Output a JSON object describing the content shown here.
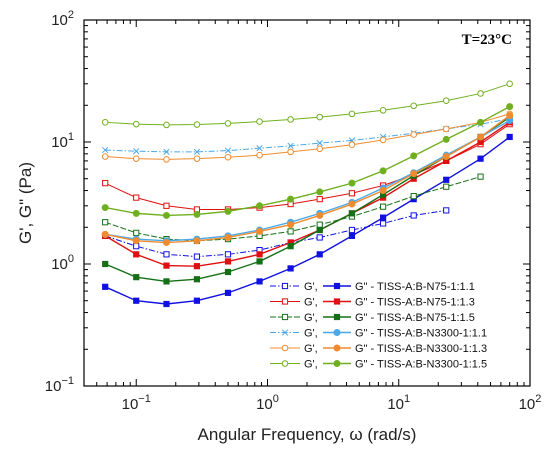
{
  "chart_data": {
    "type": "line",
    "xlabel": "Angular Frequency, ω (rad/s)",
    "ylabel": "G', G\" (Pa)",
    "annotation": "T=23°C",
    "xscale": "log",
    "yscale": "log",
    "xlim": [
      0.04,
      100
    ],
    "ylim": [
      0.1,
      100
    ],
    "x_ticks": [
      {
        "value": 0.1,
        "base": "10",
        "exp": "−1"
      },
      {
        "value": 1,
        "base": "10",
        "exp": "0"
      },
      {
        "value": 10,
        "base": "10",
        "exp": "1"
      },
      {
        "value": 100,
        "base": "10",
        "exp": "2"
      }
    ],
    "y_ticks": [
      {
        "value": 0.1,
        "base": "10",
        "exp": "−1"
      },
      {
        "value": 1,
        "base": "10",
        "exp": "0"
      },
      {
        "value": 10,
        "base": "10",
        "exp": "1"
      },
      {
        "value": 100,
        "base": "10",
        "exp": "2"
      }
    ],
    "grid": false,
    "legend_position": "bottom-right",
    "series": [
      {
        "name": "TISS-A:B-N75-1:1.1",
        "color": "#1010e0",
        "gp_label": "G',",
        "gpp_label": "G\" - TISS-A:B-N75-1:1.1",
        "gp_x": [
          0.058,
          0.1,
          0.17,
          0.29,
          0.5,
          0.87,
          1.5,
          2.5,
          4.4,
          7.6,
          13,
          23
        ],
        "gp_y": [
          1.7,
          1.4,
          1.2,
          1.15,
          1.2,
          1.3,
          1.5,
          1.65,
          1.9,
          2.15,
          2.5,
          2.75
        ],
        "gpp_x": [
          0.058,
          0.1,
          0.17,
          0.29,
          0.5,
          0.87,
          1.5,
          2.5,
          4.4,
          7.6,
          13,
          23,
          42,
          70
        ],
        "gpp_y": [
          0.65,
          0.5,
          0.47,
          0.5,
          0.58,
          0.72,
          0.92,
          1.2,
          1.7,
          2.4,
          3.4,
          4.9,
          7.3,
          11
        ]
      },
      {
        "name": "TISS-A:B-N75-1:1.3",
        "color": "#e01010",
        "gp_label": "G',",
        "gpp_label": "G\" - TISS-A:B-N75-1:1.3",
        "gp_x": [
          0.058,
          0.1,
          0.17,
          0.29,
          0.5,
          0.87,
          1.5,
          2.5,
          4.4,
          7.6,
          13,
          23,
          42,
          70
        ],
        "gp_y": [
          4.6,
          3.5,
          3.0,
          2.8,
          2.8,
          2.9,
          3.1,
          3.4,
          3.8,
          4.4,
          5.4,
          7.0,
          9.6,
          14
        ],
        "gpp_x": [
          0.058,
          0.1,
          0.17,
          0.29,
          0.5,
          0.87,
          1.5,
          2.5,
          4.4,
          7.6,
          13,
          23,
          42,
          70
        ],
        "gpp_y": [
          1.7,
          1.2,
          0.97,
          0.96,
          1.05,
          1.2,
          1.5,
          1.9,
          2.6,
          3.5,
          5.0,
          7.0,
          10,
          14.5
        ]
      },
      {
        "name": "TISS-A:B-N75-1:1.5",
        "color": "#157015",
        "gp_label": "G',",
        "gpp_label": "G\" - TISS-A:B-N75-1:1.5",
        "gp_x": [
          0.058,
          0.1,
          0.17,
          0.29,
          0.5,
          0.87,
          1.5,
          2.5,
          4.4,
          7.6,
          13,
          23,
          42
        ],
        "gp_y": [
          2.2,
          1.8,
          1.6,
          1.55,
          1.6,
          1.7,
          1.85,
          2.1,
          2.45,
          2.95,
          3.6,
          4.3,
          5.2
        ],
        "gpp_x": [
          0.058,
          0.1,
          0.17,
          0.29,
          0.5,
          0.87,
          1.5,
          2.5,
          4.4,
          7.6,
          13,
          23,
          42,
          70
        ],
        "gpp_y": [
          1.0,
          0.78,
          0.72,
          0.75,
          0.86,
          1.05,
          1.4,
          1.9,
          2.6,
          3.7,
          5.3,
          7.6,
          11,
          16
        ]
      },
      {
        "name": "TISS-A:B-N3300-1:1.1",
        "color": "#4aa8e8",
        "gp_label": "G',",
        "gpp_label": "G\" - TISS-A:B-N3300-1:1.1",
        "gp_x": [
          0.058,
          0.1,
          0.17,
          0.29,
          0.5,
          0.87,
          1.5,
          2.5,
          4.4,
          7.6,
          13,
          23,
          42,
          70
        ],
        "gp_y": [
          8.6,
          8.4,
          8.3,
          8.3,
          8.5,
          8.9,
          9.3,
          9.8,
          10.3,
          11,
          11.8,
          12.8,
          14,
          15.5
        ],
        "gpp_x": [
          0.058,
          0.1,
          0.17,
          0.29,
          0.5,
          0.87,
          1.5,
          2.5,
          4.4,
          7.6,
          13,
          23,
          42,
          70
        ],
        "gpp_y": [
          1.75,
          1.6,
          1.55,
          1.6,
          1.7,
          1.9,
          2.2,
          2.6,
          3.2,
          4.2,
          5.6,
          7.8,
          11,
          15
        ]
      },
      {
        "name": "TISS-A:B-N3300-1:1.3",
        "color": "#f08c30",
        "gp_label": "G',",
        "gpp_label": "G\" - TISS-A:B-N3300-1:1.3",
        "gp_x": [
          0.058,
          0.1,
          0.17,
          0.29,
          0.5,
          0.87,
          1.5,
          2.5,
          4.4,
          7.6,
          13,
          23,
          42,
          70
        ],
        "gp_y": [
          7.6,
          7.3,
          7.2,
          7.3,
          7.5,
          7.8,
          8.3,
          8.8,
          9.5,
          10.4,
          11.5,
          12.8,
          14.5,
          17
        ],
        "gpp_x": [
          0.058,
          0.1,
          0.17,
          0.29,
          0.5,
          0.87,
          1.5,
          2.5,
          4.4,
          7.6,
          13,
          23,
          42,
          70
        ],
        "gpp_y": [
          1.75,
          1.55,
          1.5,
          1.55,
          1.65,
          1.85,
          2.1,
          2.5,
          3.1,
          4.0,
          5.5,
          7.6,
          11,
          16.5
        ]
      },
      {
        "name": "TISS-A:B-N3300-1:1.5",
        "color": "#70b020",
        "gp_label": "G',",
        "gpp_label": "G\" - TISS-A:B-N3300-1:1.5",
        "gp_x": [
          0.058,
          0.1,
          0.17,
          0.29,
          0.5,
          0.87,
          1.5,
          2.5,
          4.4,
          7.6,
          13,
          23,
          42,
          70
        ],
        "gp_y": [
          14.5,
          14,
          13.8,
          13.9,
          14.2,
          14.7,
          15.3,
          16,
          17,
          18.2,
          19.8,
          21.8,
          25,
          30
        ],
        "gpp_x": [
          0.058,
          0.1,
          0.17,
          0.29,
          0.5,
          0.87,
          1.5,
          2.5,
          4.4,
          7.6,
          13,
          23,
          42,
          70
        ],
        "gpp_y": [
          2.9,
          2.6,
          2.5,
          2.55,
          2.7,
          3.0,
          3.4,
          3.9,
          4.6,
          5.8,
          7.7,
          10.5,
          14.5,
          19.5
        ]
      }
    ]
  }
}
